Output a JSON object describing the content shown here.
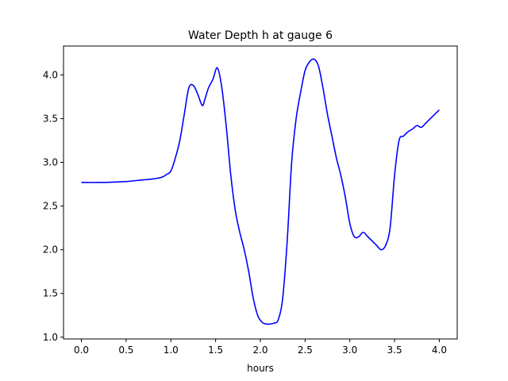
{
  "chart_data": {
    "type": "line",
    "title": "Water Depth h at gauge 6",
    "xlabel": "hours",
    "ylabel": "",
    "xlim": [
      -0.2,
      4.2
    ],
    "ylim": [
      0.98,
      4.33
    ],
    "grid": false,
    "x_ticks": [
      0.0,
      0.5,
      1.0,
      1.5,
      2.0,
      2.5,
      3.0,
      3.5,
      4.0
    ],
    "x_tick_labels": [
      "0.0",
      "0.5",
      "1.0",
      "1.5",
      "2.0",
      "2.5",
      "3.0",
      "3.5",
      "4.0"
    ],
    "y_ticks": [
      1.0,
      1.5,
      2.0,
      2.5,
      3.0,
      3.5,
      4.0
    ],
    "y_tick_labels": [
      "1.0",
      "1.5",
      "2.0",
      "2.5",
      "3.0",
      "3.5",
      "4.0"
    ],
    "series": [
      {
        "name": "",
        "color": "#0000ff",
        "x": [
          0.0,
          0.2,
          0.4,
          0.5,
          0.6,
          0.7,
          0.8,
          0.9,
          0.95,
          1.0,
          1.05,
          1.1,
          1.15,
          1.2,
          1.25,
          1.3,
          1.35,
          1.38,
          1.42,
          1.47,
          1.52,
          1.57,
          1.62,
          1.67,
          1.72,
          1.77,
          1.82,
          1.87,
          1.92,
          1.97,
          2.02,
          2.07,
          2.1,
          2.15,
          2.2,
          2.25,
          2.3,
          2.35,
          2.4,
          2.45,
          2.5,
          2.55,
          2.6,
          2.65,
          2.7,
          2.75,
          2.8,
          2.85,
          2.9,
          2.95,
          3.0,
          3.05,
          3.1,
          3.15,
          3.2,
          3.25,
          3.3,
          3.35,
          3.4,
          3.45,
          3.5,
          3.55,
          3.6,
          3.65,
          3.7,
          3.75,
          3.8,
          3.85,
          3.9,
          3.95,
          4.0
        ],
        "y": [
          2.77,
          2.77,
          2.775,
          2.78,
          2.79,
          2.8,
          2.81,
          2.83,
          2.86,
          2.9,
          3.05,
          3.25,
          3.55,
          3.85,
          3.88,
          3.78,
          3.65,
          3.72,
          3.85,
          3.95,
          4.08,
          3.85,
          3.4,
          2.85,
          2.45,
          2.2,
          2.0,
          1.75,
          1.45,
          1.25,
          1.17,
          1.15,
          1.15,
          1.16,
          1.2,
          1.45,
          2.1,
          3.0,
          3.5,
          3.8,
          4.05,
          4.15,
          4.18,
          4.1,
          3.85,
          3.55,
          3.3,
          3.05,
          2.85,
          2.6,
          2.3,
          2.15,
          2.15,
          2.2,
          2.15,
          2.1,
          2.05,
          2.0,
          2.05,
          2.25,
          2.85,
          3.25,
          3.3,
          3.35,
          3.38,
          3.42,
          3.4,
          3.45,
          3.5,
          3.55,
          3.6
        ]
      }
    ]
  }
}
